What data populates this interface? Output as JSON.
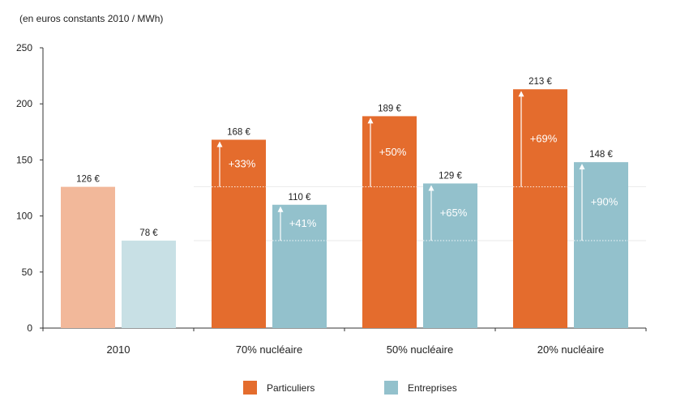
{
  "chart_data": {
    "type": "bar",
    "unit_label": "(en euros constants 2010 / MWh)",
    "categories": [
      "2010",
      "70% nucléaire",
      "50% nucléaire",
      "20% nucléaire"
    ],
    "ylim": [
      0,
      250
    ],
    "yticks": [
      0,
      50,
      100,
      150,
      200,
      250
    ],
    "series": [
      {
        "name": "Particuliers",
        "color": "#e46c2d",
        "baseline_color": "#f2b89a",
        "values": [
          126,
          168,
          189,
          213
        ],
        "value_labels": [
          "126 €",
          "168 €",
          "189 €",
          "213 €"
        ],
        "change_labels": [
          "",
          "+33%",
          "+50%",
          "+69%"
        ]
      },
      {
        "name": "Entreprises",
        "color": "#93c1cc",
        "baseline_color": "#c8e0e5",
        "values": [
          78,
          110,
          129,
          148
        ],
        "value_labels": [
          "78 €",
          "110 €",
          "129 €",
          "148 €"
        ],
        "change_labels": [
          "",
          "+41%",
          "+65%",
          "+90%"
        ]
      }
    ]
  }
}
